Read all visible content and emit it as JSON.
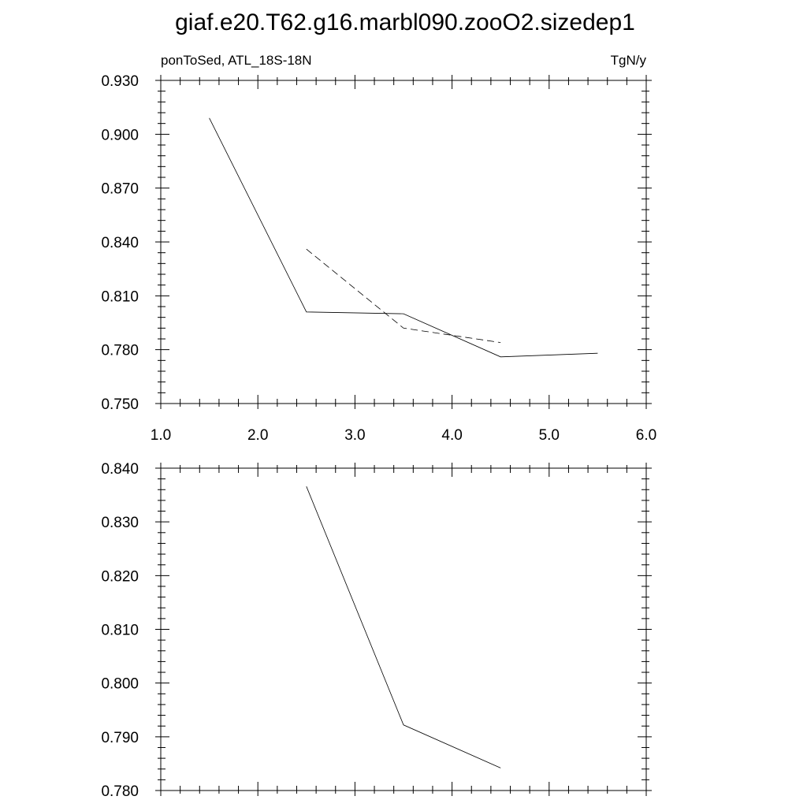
{
  "chart_data": [
    {
      "type": "line",
      "title": "giaf.e20.T62.g16.marbl090.zooO2.sizedep1",
      "left_label": "ponToSed, ATL_18S-18N",
      "right_label": "TgN/y",
      "xlim": [
        1.0,
        6.0
      ],
      "ylim": [
        0.75,
        0.93
      ],
      "x_ticks": [
        "1.0",
        "2.0",
        "3.0",
        "4.0",
        "5.0",
        "6.0"
      ],
      "y_ticks": [
        "0.750",
        "0.780",
        "0.810",
        "0.840",
        "0.870",
        "0.900",
        "0.930"
      ],
      "grid": false,
      "series": [
        {
          "style": "solid",
          "x": [
            1.5,
            2.5,
            3.5,
            4.5,
            5.5
          ],
          "y": [
            0.909,
            0.801,
            0.8,
            0.776,
            0.778
          ]
        },
        {
          "style": "dashed",
          "x": [
            2.5,
            3.5,
            4.5
          ],
          "y": [
            0.836,
            0.792,
            0.784
          ]
        }
      ]
    },
    {
      "type": "line",
      "xlim": [
        1.0,
        6.0
      ],
      "ylim": [
        0.78,
        0.84
      ],
      "y_ticks": [
        "0.780",
        "0.790",
        "0.800",
        "0.810",
        "0.820",
        "0.830",
        "0.840"
      ],
      "grid": false,
      "series": [
        {
          "style": "solid",
          "x": [
            2.5,
            3.5,
            4.5
          ],
          "y": [
            0.8366,
            0.7922,
            0.7842
          ]
        }
      ]
    }
  ]
}
